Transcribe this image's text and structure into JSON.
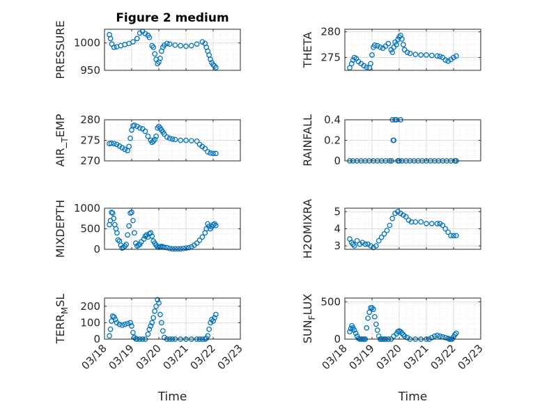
{
  "figure_title": "Figure 2 medium",
  "xlabel": "Time",
  "x_tick_labels": [
    "03/18",
    "03/19",
    "03/20",
    "03/21",
    "03/22",
    "03/23"
  ],
  "marker_color": "#0072BD",
  "chart_data": [
    {
      "type": "scatter",
      "marker": "circle-open",
      "title": "Figure 2 medium",
      "ylabel": "PRESSURE",
      "ytick_labels": [
        "950",
        "1000"
      ],
      "ylim": [
        950,
        1025
      ],
      "xlim": [
        0,
        5
      ],
      "grid": true,
      "x": [
        0.18,
        0.22,
        0.27,
        0.35,
        0.45,
        0.6,
        0.75,
        0.9,
        1.05,
        1.2,
        1.3,
        1.4,
        1.5,
        1.6,
        1.65,
        1.75,
        1.8,
        1.85,
        1.9,
        1.95,
        2.0,
        2.05,
        2.1,
        2.15,
        2.2,
        2.3,
        2.4,
        2.6,
        2.8,
        3.0,
        3.2,
        3.4,
        3.6,
        3.7,
        3.75,
        3.8,
        3.85,
        3.9,
        3.95,
        4.0,
        4.05,
        4.1
      ],
      "y": [
        1015,
        1008,
        998,
        992,
        993,
        995,
        997,
        999,
        1002,
        1008,
        1018,
        1021,
        1017,
        1014,
        1010,
        995,
        992,
        980,
        970,
        962,
        965,
        972,
        985,
        992,
        996,
        999,
        998,
        996,
        995,
        994,
        995,
        998,
        1002,
        999,
        992,
        985,
        978,
        970,
        964,
        960,
        958,
        955
      ]
    },
    {
      "type": "scatter",
      "marker": "circle-open",
      "ylabel": "THETA",
      "ytick_labels": [
        "275",
        "280"
      ],
      "ylim": [
        272.5,
        280.5
      ],
      "xlim": [
        0,
        5
      ],
      "grid": true,
      "x": [
        0.18,
        0.25,
        0.3,
        0.35,
        0.42,
        0.5,
        0.6,
        0.7,
        0.8,
        0.9,
        0.95,
        1.0,
        1.05,
        1.1,
        1.2,
        1.3,
        1.4,
        1.5,
        1.6,
        1.7,
        1.75,
        1.8,
        1.85,
        1.9,
        1.95,
        2.0,
        2.05,
        2.1,
        2.15,
        2.2,
        2.3,
        2.4,
        2.6,
        2.8,
        3.0,
        3.2,
        3.4,
        3.5,
        3.6,
        3.7,
        3.8,
        3.9,
        4.0,
        4.1
      ],
      "y": [
        273.0,
        273.8,
        274.5,
        275.0,
        274.8,
        274.2,
        273.8,
        273.4,
        273.1,
        273.0,
        273.8,
        275.5,
        277.0,
        277.4,
        277.3,
        277.0,
        276.8,
        277.2,
        277.7,
        276.5,
        276.0,
        277.0,
        278.0,
        277.5,
        278.5,
        279.0,
        279.3,
        278.6,
        277.5,
        276.5,
        276.0,
        275.8,
        275.6,
        275.5,
        275.5,
        275.4,
        275.3,
        275.2,
        275.0,
        274.5,
        274.3,
        274.6,
        275.0,
        275.3
      ]
    },
    {
      "type": "scatter",
      "marker": "circle-open",
      "ylabel": "AIR_TEMP",
      "ytick_labels": [
        "270",
        "275",
        "280"
      ],
      "ylim": [
        270,
        280
      ],
      "xlim": [
        0,
        5
      ],
      "grid": true,
      "x": [
        0.18,
        0.25,
        0.35,
        0.45,
        0.55,
        0.65,
        0.75,
        0.85,
        0.9,
        0.95,
        1.0,
        1.05,
        1.1,
        1.2,
        1.3,
        1.4,
        1.5,
        1.6,
        1.7,
        1.75,
        1.8,
        1.85,
        1.9,
        1.95,
        2.0,
        2.05,
        2.1,
        2.15,
        2.2,
        2.3,
        2.4,
        2.5,
        2.6,
        2.8,
        3.0,
        3.2,
        3.4,
        3.5,
        3.6,
        3.7,
        3.8,
        3.9,
        4.0,
        4.1
      ],
      "y": [
        274.2,
        274.3,
        274.2,
        274.0,
        273.6,
        273.2,
        272.8,
        272.5,
        273.5,
        275.5,
        277.5,
        278.5,
        278.7,
        278.4,
        278.0,
        277.8,
        277.2,
        276.0,
        275.0,
        274.5,
        274.8,
        275.2,
        276.0,
        278.0,
        278.4,
        278.0,
        277.5,
        277.0,
        276.5,
        275.8,
        275.5,
        275.3,
        275.2,
        275.0,
        275.0,
        274.9,
        274.8,
        274.0,
        273.5,
        273.0,
        272.2,
        271.9,
        271.8,
        271.8
      ]
    },
    {
      "type": "scatter",
      "marker": "circle-open",
      "ylabel": "RAINFALL",
      "ytick_labels": [
        "0",
        "0.2",
        "0.4"
      ],
      "ylim": [
        0,
        0.4
      ],
      "xlim": [
        0,
        5
      ],
      "grid": true,
      "x": [
        0.18,
        0.3,
        0.45,
        0.6,
        0.75,
        0.9,
        1.05,
        1.2,
        1.35,
        1.5,
        1.65,
        1.72,
        1.75,
        1.78,
        1.8,
        1.85,
        1.9,
        1.95,
        2.0,
        2.05,
        2.1,
        2.25,
        2.4,
        2.55,
        2.7,
        2.85,
        3.0,
        3.15,
        3.3,
        3.45,
        3.6,
        3.75,
        3.9,
        4.05,
        4.1
      ],
      "y": [
        0,
        0,
        0,
        0,
        0,
        0,
        0,
        0,
        0,
        0,
        0,
        0,
        0.4,
        0.2,
        0.2,
        0.4,
        0.4,
        0,
        0,
        0.4,
        0,
        0,
        0,
        0,
        0,
        0,
        0,
        0,
        0,
        0,
        0,
        0,
        0,
        0,
        0
      ]
    },
    {
      "type": "scatter",
      "marker": "circle-open",
      "ylabel": "MIXDEPTH",
      "ytick_labels": [
        "0",
        "500",
        "1000"
      ],
      "ylim": [
        0,
        1000
      ],
      "xlim": [
        0,
        5
      ],
      "grid": true,
      "x": [
        0.18,
        0.22,
        0.26,
        0.3,
        0.34,
        0.38,
        0.42,
        0.46,
        0.5,
        0.55,
        0.6,
        0.65,
        0.7,
        0.75,
        0.8,
        0.85,
        0.9,
        0.95,
        1.0,
        1.05,
        1.1,
        1.15,
        1.2,
        1.25,
        1.3,
        1.35,
        1.45,
        1.5,
        1.55,
        1.6,
        1.65,
        1.7,
        1.75,
        1.8,
        1.85,
        1.9,
        1.95,
        2.0,
        2.05,
        2.1,
        2.15,
        2.2,
        2.3,
        2.4,
        2.5,
        2.6,
        2.7,
        2.8,
        2.9,
        3.0,
        3.1,
        3.2,
        3.3,
        3.4,
        3.5,
        3.6,
        3.7,
        3.75,
        3.8,
        3.85,
        3.9,
        3.95,
        4.0,
        4.05,
        4.1
      ],
      "y": [
        600,
        700,
        900,
        880,
        750,
        600,
        500,
        400,
        230,
        200,
        100,
        30,
        50,
        80,
        120,
        350,
        570,
        880,
        900,
        700,
        400,
        150,
        80,
        100,
        120,
        180,
        250,
        320,
        350,
        300,
        380,
        400,
        320,
        200,
        150,
        100,
        60,
        50,
        60,
        70,
        60,
        50,
        40,
        20,
        10,
        10,
        10,
        10,
        20,
        30,
        40,
        60,
        100,
        150,
        220,
        300,
        400,
        500,
        620,
        560,
        500,
        550,
        600,
        620,
        580
      ]
    },
    {
      "type": "scatter",
      "marker": "circle-open",
      "ylabel": "H2OMIXRA",
      "ytick_labels": [
        "3",
        "4",
        "5"
      ],
      "ylim": [
        2.8,
        5.2
      ],
      "xlim": [
        0,
        5
      ],
      "grid": true,
      "x": [
        0.18,
        0.25,
        0.3,
        0.35,
        0.45,
        0.55,
        0.65,
        0.75,
        0.85,
        0.95,
        1.05,
        1.15,
        1.25,
        1.35,
        1.45,
        1.55,
        1.65,
        1.75,
        1.85,
        1.95,
        2.05,
        2.15,
        2.25,
        2.35,
        2.45,
        2.6,
        2.8,
        3.0,
        3.2,
        3.4,
        3.5,
        3.6,
        3.7,
        3.8,
        3.9,
        4.0,
        4.1
      ],
      "y": [
        3.4,
        3.2,
        3.1,
        3.0,
        3.3,
        3.1,
        3.2,
        3.1,
        3.1,
        3.0,
        2.9,
        3.0,
        3.3,
        3.5,
        3.7,
        3.9,
        4.2,
        4.6,
        4.9,
        5.0,
        4.9,
        4.8,
        4.7,
        4.5,
        4.4,
        4.4,
        4.4,
        4.3,
        4.3,
        4.3,
        4.3,
        4.2,
        4.0,
        3.8,
        3.6,
        3.6,
        3.6
      ]
    },
    {
      "type": "scatter",
      "marker": "circle-open",
      "ylabel": "TERR_MSL",
      "ytick_labels": [
        "0",
        "100",
        "200"
      ],
      "ylim": [
        0,
        250
      ],
      "xlim": [
        0,
        5
      ],
      "grid": true,
      "x": [
        0.18,
        0.22,
        0.26,
        0.3,
        0.35,
        0.4,
        0.45,
        0.55,
        0.65,
        0.75,
        0.85,
        0.95,
        1.0,
        1.05,
        1.1,
        1.15,
        1.2,
        1.3,
        1.4,
        1.5,
        1.6,
        1.65,
        1.7,
        1.75,
        1.8,
        1.85,
        1.9,
        1.95,
        2.0,
        2.05,
        2.1,
        2.15,
        2.2,
        2.3,
        2.4,
        2.5,
        2.6,
        2.8,
        3.0,
        3.2,
        3.4,
        3.5,
        3.6,
        3.7,
        3.75,
        3.8,
        3.85,
        3.9,
        3.95,
        4.0,
        4.05,
        4.1
      ],
      "y": [
        20,
        60,
        110,
        140,
        135,
        120,
        100,
        90,
        85,
        90,
        95,
        100,
        80,
        40,
        10,
        2,
        0,
        0,
        0,
        0,
        30,
        60,
        80,
        100,
        130,
        170,
        200,
        240,
        220,
        150,
        100,
        50,
        10,
        0,
        0,
        0,
        0,
        0,
        0,
        0,
        0,
        0,
        0,
        0,
        5,
        20,
        60,
        100,
        120,
        110,
        130,
        150
      ]
    },
    {
      "type": "scatter",
      "marker": "circle-open",
      "ylabel": "SUN_FLUX",
      "ytick_labels": [
        "0",
        "500"
      ],
      "ylim": [
        0,
        550
      ],
      "xlim": [
        0,
        5
      ],
      "grid": true,
      "x": [
        0.18,
        0.22,
        0.26,
        0.3,
        0.35,
        0.4,
        0.45,
        0.5,
        0.55,
        0.6,
        0.65,
        0.7,
        0.75,
        0.8,
        0.85,
        0.9,
        0.95,
        1.0,
        1.05,
        1.1,
        1.15,
        1.2,
        1.25,
        1.3,
        1.35,
        1.4,
        1.45,
        1.5,
        1.6,
        1.7,
        1.8,
        1.9,
        1.95,
        2.0,
        2.05,
        2.1,
        2.15,
        2.2,
        2.3,
        2.4,
        2.6,
        2.8,
        3.0,
        3.1,
        3.2,
        3.3,
        3.4,
        3.5,
        3.6,
        3.7,
        3.8,
        3.85,
        3.9,
        3.95,
        4.0,
        4.05,
        4.1
      ],
      "y": [
        100,
        140,
        180,
        150,
        120,
        80,
        40,
        10,
        0,
        0,
        0,
        0,
        0,
        150,
        280,
        360,
        420,
        420,
        400,
        300,
        200,
        120,
        40,
        0,
        0,
        0,
        0,
        0,
        0,
        0,
        40,
        70,
        100,
        110,
        100,
        80,
        60,
        40,
        20,
        0,
        0,
        0,
        0,
        0,
        20,
        40,
        50,
        40,
        30,
        20,
        10,
        0,
        0,
        0,
        30,
        60,
        80
      ]
    }
  ]
}
